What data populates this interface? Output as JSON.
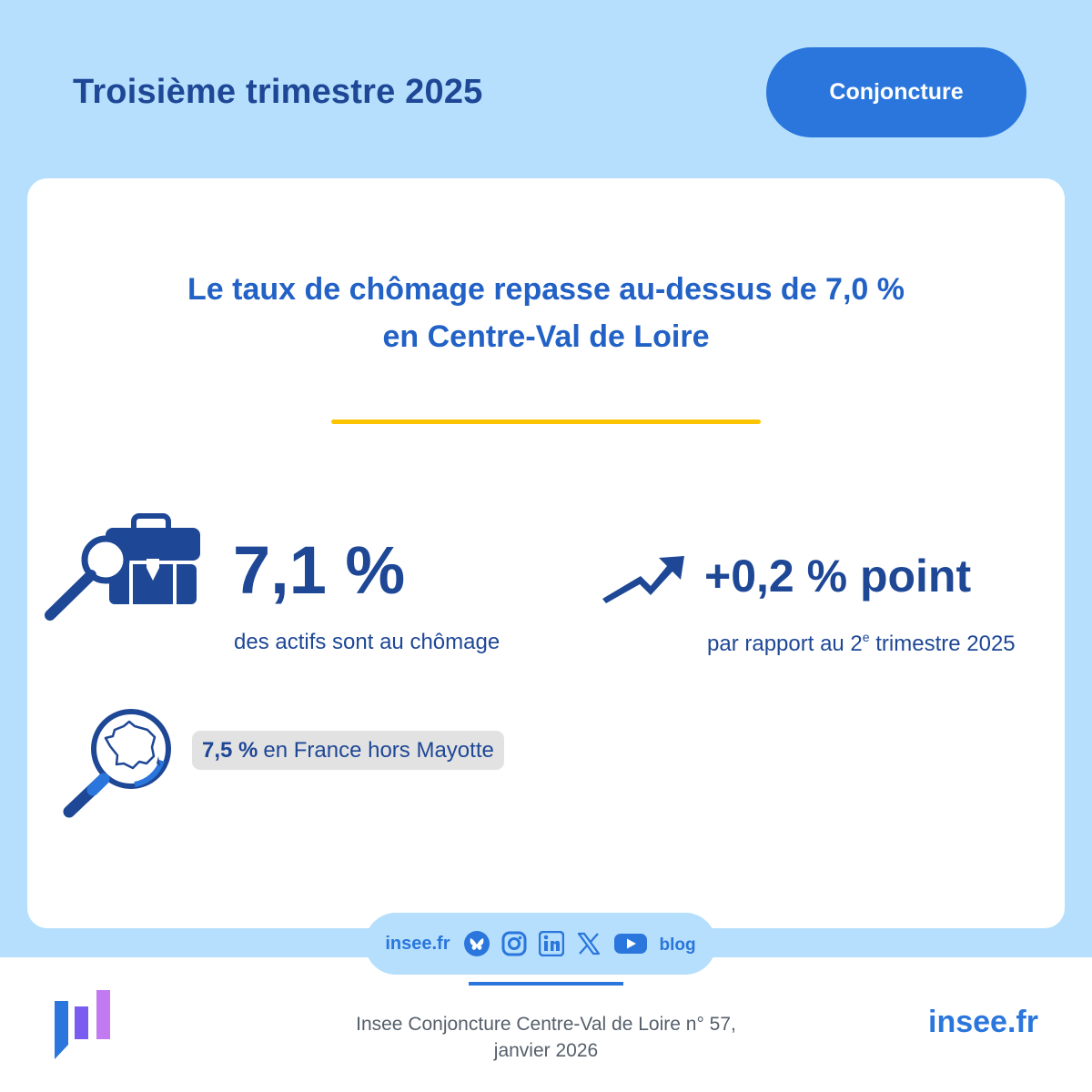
{
  "header": {
    "title": "Troisième trimestre 2025",
    "tag": "Conjoncture"
  },
  "card": {
    "headline_line1": "Le taux de chômage repasse au-dessus de 7,0 %",
    "headline_line2": "en Centre-Val de Loire",
    "stat_main": {
      "value": "7,1 %",
      "caption": "des actifs sont au chômage",
      "icon": "briefcase-magnifier-icon"
    },
    "stat_change": {
      "value": "+0,2 % point",
      "caption_prefix": "par rapport au 2",
      "caption_sup": "e",
      "caption_suffix": " trimestre 2025",
      "icon": "trend-up-arrow-icon"
    },
    "france": {
      "value": "7,5 %",
      "label": "en France hors Mayotte",
      "icon": "france-magnifier-icon"
    }
  },
  "social": {
    "site": "insee.fr",
    "icons": [
      "bluesky-icon",
      "instagram-icon",
      "linkedin-icon",
      "x-icon",
      "youtube-icon",
      "blog-icon"
    ],
    "blog_label": "blog"
  },
  "footer": {
    "publication_line1": "Insee Conjoncture Centre-Val de Loire n° 57,",
    "publication_line2": "janvier 2026",
    "site": "insee.fr"
  },
  "colors": {
    "background": "#b5dffc",
    "primary_dark": "#1e4796",
    "primary": "#2a76dd",
    "headline": "#2261c5",
    "accent": "#fcc300"
  }
}
